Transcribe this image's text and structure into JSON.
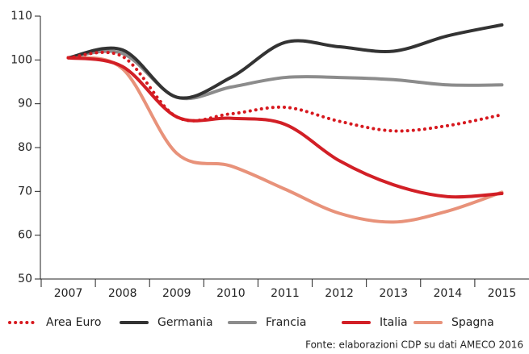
{
  "chart_data": {
    "type": "line",
    "categories": [
      "2007",
      "2008",
      "2009",
      "2010",
      "2011",
      "2012",
      "2013",
      "2014",
      "2015"
    ],
    "series": [
      {
        "name": "Area Euro",
        "color": "#d7191f",
        "dash": "dotted",
        "values": [
          100.5,
          100.8,
          87,
          87.7,
          89.2,
          86,
          83.8,
          85,
          87.5
        ]
      },
      {
        "name": "Germania",
        "color": "#333333",
        "values": [
          100.5,
          102.3,
          91.5,
          96,
          104,
          103,
          102,
          105.5,
          108
        ]
      },
      {
        "name": "Francia",
        "color": "#8c8c8c",
        "values": [
          100.5,
          101.5,
          91.5,
          93.8,
          96,
          96,
          95.5,
          94.3,
          94.3
        ]
      },
      {
        "name": "Italia",
        "color": "#d21f26",
        "values": [
          100.5,
          98.5,
          87,
          86.7,
          85.3,
          77,
          71.5,
          68.8,
          69.5
        ]
      },
      {
        "name": "Spagna",
        "color": "#e8927a",
        "values": [
          100.5,
          98,
          78.7,
          75.8,
          70.5,
          65,
          63,
          65.5,
          69.8
        ]
      }
    ],
    "ylim": [
      50,
      110
    ],
    "yticks": [
      50,
      60,
      70,
      80,
      90,
      100,
      110
    ],
    "source": "Fonte: elaborazioni CDP su dati AMECO 2016",
    "legend": "bottom"
  }
}
